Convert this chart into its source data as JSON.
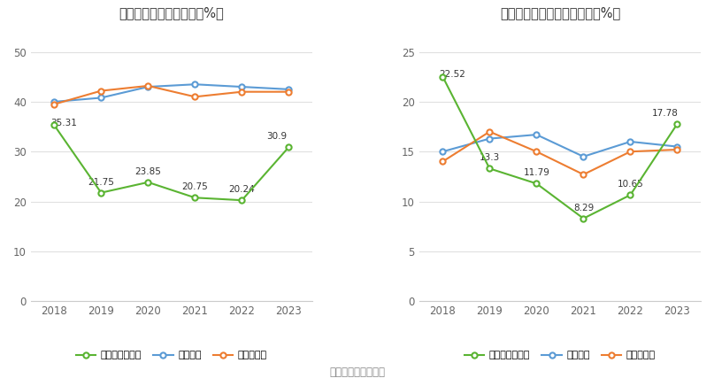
{
  "years": [
    2018,
    2019,
    2020,
    2021,
    2022,
    2023
  ],
  "left_title": "近年来资产负債率情况（%）",
  "left_company": [
    35.31,
    21.75,
    23.85,
    20.75,
    20.24,
    30.9
  ],
  "left_industry_mean": [
    40.0,
    40.8,
    43.0,
    43.5,
    43.0,
    42.5
  ],
  "left_industry_median": [
    39.5,
    42.2,
    43.2,
    41.0,
    42.0,
    42.0
  ],
  "left_company_label": "公司资产负債率",
  "left_mean_label": "行业均値",
  "left_median_label": "行业中位数",
  "left_ylim": [
    0,
    55
  ],
  "left_yticks": [
    0,
    10,
    20,
    30,
    40,
    50
  ],
  "right_title": "近年来有息资产负債率情况（%）",
  "right_company": [
    22.52,
    13.3,
    11.79,
    8.29,
    10.65,
    17.78
  ],
  "right_industry_mean": [
    15.0,
    16.3,
    16.7,
    14.5,
    16.0,
    15.5
  ],
  "right_industry_median": [
    14.0,
    17.0,
    15.0,
    12.7,
    15.0,
    15.2
  ],
  "right_company_label": "有息资产负債率",
  "right_mean_label": "行业均値",
  "right_median_label": "行业中位数",
  "right_ylim": [
    0,
    27.5
  ],
  "right_yticks": [
    0,
    5,
    10,
    15,
    20,
    25
  ],
  "color_company": "#5ab432",
  "color_mean": "#5b9bd5",
  "color_median": "#ed7d31",
  "footer": "数据来源：恒生聚源",
  "bg_color": "#ffffff"
}
